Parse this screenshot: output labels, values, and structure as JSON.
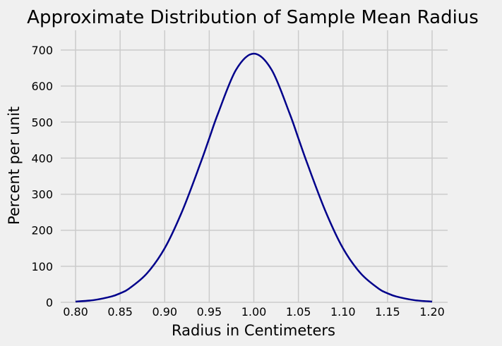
{
  "chart_data": {
    "type": "line",
    "title": "Approximate Distribution of Sample Mean Radius",
    "xlabel": "Radius in Centimeters",
    "ylabel": "Percent per unit",
    "xlim": [
      0.8,
      1.2
    ],
    "ylim": [
      0,
      750
    ],
    "xticks": [
      "0.80",
      "0.85",
      "0.90",
      "0.95",
      "1.00",
      "1.05",
      "1.10",
      "1.15",
      "1.20"
    ],
    "yticks": [
      "0",
      "100",
      "200",
      "300",
      "400",
      "500",
      "600",
      "700"
    ],
    "grid": true,
    "series": [
      {
        "color": "#00008b",
        "x": [
          0.8,
          0.82,
          0.84,
          0.85,
          0.86,
          0.88,
          0.9,
          0.92,
          0.94,
          0.95,
          0.96,
          0.98,
          1.0,
          1.02,
          1.04,
          1.05,
          1.06,
          1.08,
          1.1,
          1.12,
          1.14,
          1.15,
          1.16,
          1.18,
          1.2
        ],
        "y": [
          2,
          6,
          16,
          25,
          38,
          80,
          150,
          255,
          385,
          455,
          525,
          645,
          690,
          645,
          525,
          455,
          385,
          255,
          150,
          80,
          38,
          25,
          16,
          6,
          2
        ]
      }
    ]
  }
}
